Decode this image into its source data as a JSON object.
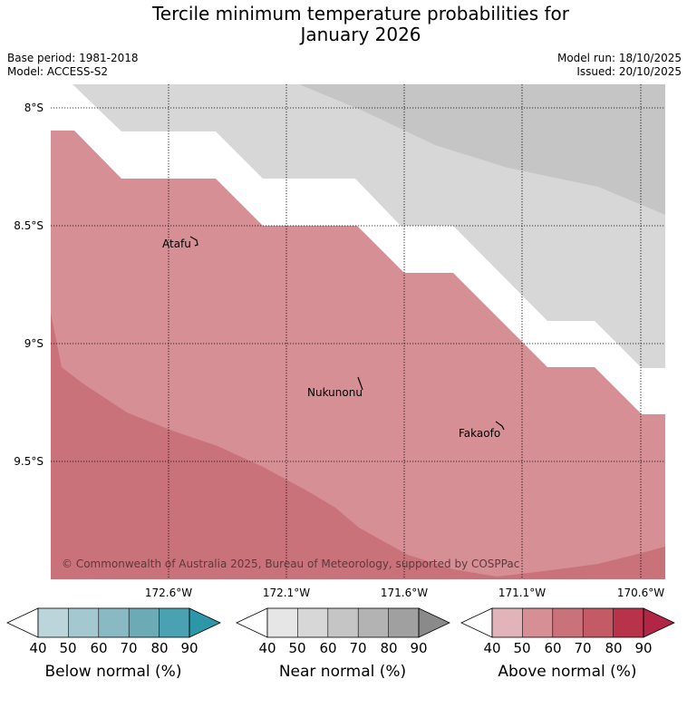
{
  "title_line1": "Tercile minimum temperature probabilities for",
  "title_line2": "January 2026",
  "meta": {
    "base_period": "Base period: 1981-2018",
    "model": "Model: ACCESS-S2",
    "model_run": "Model run: 18/10/2025",
    "issued": "Issued: 20/10/2025"
  },
  "map": {
    "lat_labels": [
      "8°S",
      "8.5°S",
      "9°S",
      "9.5°S"
    ],
    "lon_labels": [
      "172.6°W",
      "172.1°W",
      "171.6°W",
      "171.1°W",
      "170.6°W"
    ],
    "places": [
      "Atafu",
      "Nukunonu",
      "Fakaofo"
    ],
    "copyright": "© Commonwealth of Australia 2025, Bureau of Meteorology, supported by COSPPac"
  },
  "colorbars": [
    {
      "label": "Below normal (%)",
      "ticks": [
        "40",
        "50",
        "60",
        "70",
        "80",
        "90"
      ],
      "colors": [
        "#ffffff",
        "#bcd5da",
        "#a4c8cf",
        "#89b9c3",
        "#6caab6",
        "#4aa1b1",
        "#2d96a8"
      ]
    },
    {
      "label": "Near normal (%)",
      "ticks": [
        "40",
        "50",
        "60",
        "70",
        "80",
        "90"
      ],
      "colors": [
        "#ffffff",
        "#e6e6e6",
        "#d7d7d7",
        "#c5c5c5",
        "#b3b3b3",
        "#a0a0a0",
        "#8a8a8a"
      ]
    },
    {
      "label": "Above normal (%)",
      "ticks": [
        "40",
        "50",
        "60",
        "70",
        "80",
        "90"
      ],
      "colors": [
        "#ffffff",
        "#e2b4b9",
        "#d58f95",
        "#ca727a",
        "#c45a66",
        "#b8324a",
        "#b12644"
      ]
    }
  ]
}
